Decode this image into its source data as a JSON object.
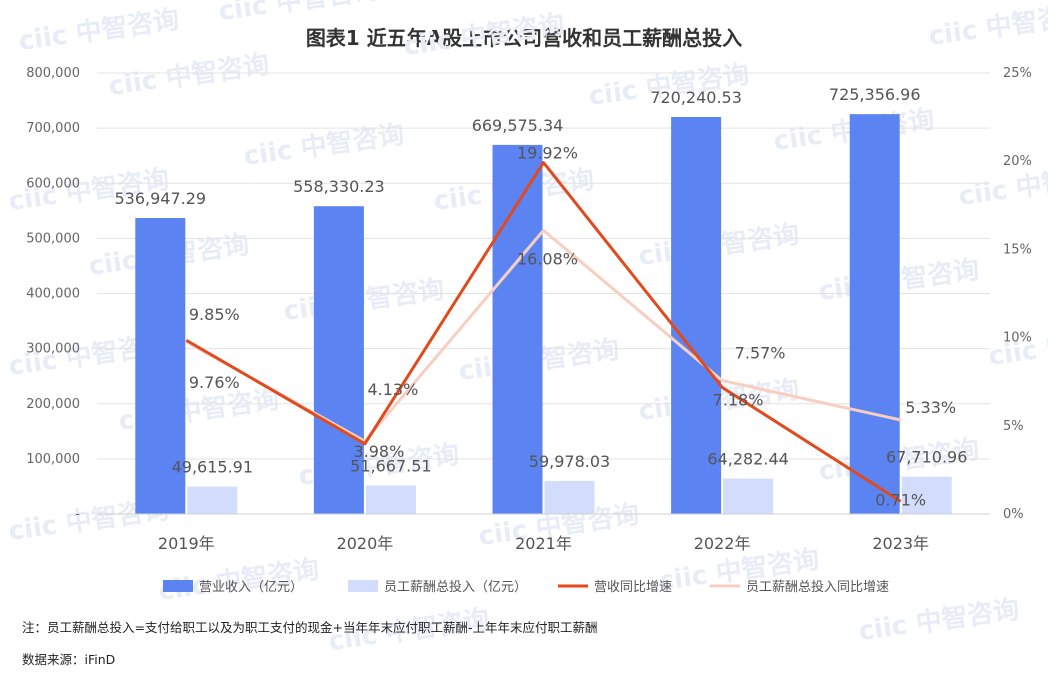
{
  "chart_data": {
    "type": "bar",
    "title": "图表1  近五年A股上市公司营收和员工薪酬总投入",
    "categories": [
      "2019年",
      "2020年",
      "2021年",
      "2022年",
      "2023年"
    ],
    "left_axis": {
      "ylim": [
        0,
        800000
      ],
      "ticks": [
        "-",
        "100,000",
        "200,000",
        "300,000",
        "400,000",
        "500,000",
        "600,000",
        "700,000",
        "800,000"
      ]
    },
    "right_axis": {
      "ylim": [
        0,
        25
      ],
      "ticks": [
        "0%",
        "5%",
        "10%",
        "15%",
        "20%",
        "25%"
      ]
    },
    "grid": true,
    "legend_position": "bottom",
    "series": [
      {
        "name": "营业收入（亿元）",
        "type": "bar",
        "axis": "left",
        "color": "#5b84f2",
        "values": [
          536947.29,
          558330.23,
          669575.34,
          720240.53,
          725356.96
        ],
        "labels": [
          "536,947.29",
          "558,330.23",
          "669,575.34",
          "720,240.53",
          "725,356.96"
        ]
      },
      {
        "name": "员工薪酬总投入（亿元）",
        "type": "bar",
        "axis": "left",
        "color": "#d2dcfd",
        "values": [
          49615.91,
          51667.51,
          59978.03,
          64282.44,
          67710.96
        ],
        "labels": [
          "49,615.91",
          "51,667.51",
          "59,978.03",
          "64,282.44",
          "67,710.96"
        ]
      },
      {
        "name": "营收同比增速",
        "type": "line",
        "axis": "right",
        "color": "#e24a1d",
        "values": [
          9.85,
          3.98,
          19.92,
          7.18,
          0.71
        ],
        "labels": [
          "9.85%",
          "3.98%",
          "19.92%",
          "7.18%",
          "0.71%"
        ]
      },
      {
        "name": "员工薪酬总投入同比增速",
        "type": "line",
        "axis": "right",
        "color": "#f7cfc0",
        "values": [
          9.76,
          4.13,
          16.08,
          7.57,
          5.33
        ],
        "labels": [
          "9.76%",
          "4.13%",
          "16.08%",
          "7.57%",
          "5.33%"
        ]
      }
    ]
  },
  "notes": {
    "note": "注：员工薪酬总投入=支付给职工以及为职工支付的现金+当年年末应付职工薪酬-上年年末应付职工薪酬",
    "source": "数据来源：iFinD"
  },
  "watermark": "ciic 中智咨询"
}
